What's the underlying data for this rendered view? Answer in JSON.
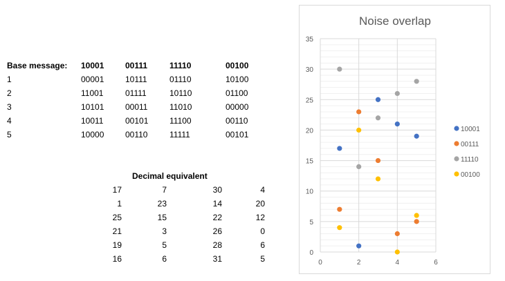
{
  "table": {
    "base_label": "Base message:",
    "header": [
      "10001",
      "00111",
      "11110",
      "00100"
    ],
    "rows": [
      {
        "label": "1",
        "cells": [
          "00001",
          "10111",
          "01110",
          "10100"
        ]
      },
      {
        "label": "2",
        "cells": [
          "11001",
          "01111",
          "10110",
          "01100"
        ]
      },
      {
        "label": "3",
        "cells": [
          "10101",
          "00011",
          "11010",
          "00000"
        ]
      },
      {
        "label": "4",
        "cells": [
          "10011",
          "00101",
          "11100",
          "00110"
        ]
      },
      {
        "label": "5",
        "cells": [
          "10000",
          "00110",
          "11111",
          "00101"
        ]
      }
    ]
  },
  "decimal": {
    "title": "Decimal equivalent",
    "rows": [
      [
        "17",
        "7",
        "30",
        "4"
      ],
      [
        "1",
        "23",
        "14",
        "20"
      ],
      [
        "25",
        "15",
        "22",
        "12"
      ],
      [
        "21",
        "3",
        "26",
        "0"
      ],
      [
        "19",
        "5",
        "28",
        "6"
      ],
      [
        "16",
        "6",
        "31",
        "5"
      ]
    ]
  },
  "chart_data": {
    "type": "scatter",
    "title": "Noise overlap",
    "xlim": [
      0,
      6
    ],
    "ylim": [
      0,
      35
    ],
    "x_ticks": [
      "0",
      "2",
      "4",
      "6"
    ],
    "y_ticks": [
      "0",
      "5",
      "10",
      "15",
      "20",
      "25",
      "30",
      "35"
    ],
    "grid": "major and minor horizontal, major vertical",
    "legend_position": "right",
    "series": [
      {
        "name": "10001",
        "color": "#4472C4",
        "points": [
          [
            1,
            17
          ],
          [
            2,
            1
          ],
          [
            3,
            25
          ],
          [
            4,
            21
          ],
          [
            5,
            19
          ]
        ]
      },
      {
        "name": "00111",
        "color": "#ED7D31",
        "points": [
          [
            1,
            7
          ],
          [
            2,
            23
          ],
          [
            3,
            15
          ],
          [
            4,
            3
          ],
          [
            5,
            5
          ]
        ]
      },
      {
        "name": "11110",
        "color": "#A5A5A5",
        "points": [
          [
            1,
            30
          ],
          [
            2,
            14
          ],
          [
            3,
            22
          ],
          [
            4,
            26
          ],
          [
            5,
            28
          ]
        ]
      },
      {
        "name": "00100",
        "color": "#FFC000",
        "points": [
          [
            1,
            4
          ],
          [
            2,
            20
          ],
          [
            3,
            12
          ],
          [
            4,
            0
          ],
          [
            5,
            6
          ]
        ]
      }
    ]
  }
}
